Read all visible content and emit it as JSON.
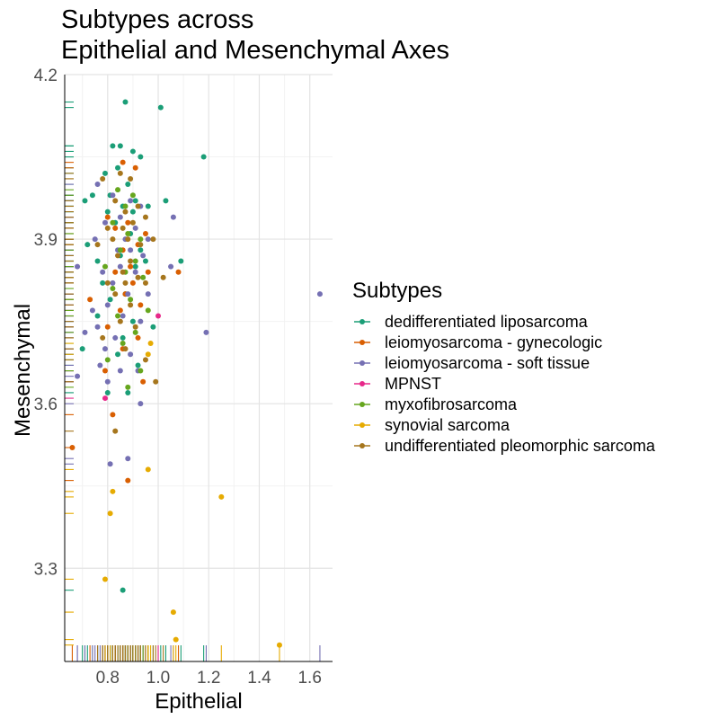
{
  "chart_data": {
    "type": "scatter",
    "title_lines": [
      "Subtypes across",
      "Epithelial and Mesenchymal Axes"
    ],
    "xlabel": "Epithelial",
    "ylabel": "Mesenchymal",
    "xlim": [
      0.63,
      1.69
    ],
    "ylim": [
      3.13,
      4.2
    ],
    "xticks": [
      {
        "value": 0.8,
        "label": "0.8"
      },
      {
        "value": 1.0,
        "label": "1.0"
      },
      {
        "value": 1.2,
        "label": "1.2"
      },
      {
        "value": 1.4,
        "label": "1.4"
      },
      {
        "value": 1.6,
        "label": "1.6"
      }
    ],
    "yticks": [
      {
        "value": 3.3,
        "label": "3.3"
      },
      {
        "value": 3.6,
        "label": "3.6"
      },
      {
        "value": 3.9,
        "label": "3.9"
      },
      {
        "value": 4.2,
        "label": "4.2"
      }
    ],
    "grid": true,
    "rug": true,
    "legend": {
      "title": "Subtypes",
      "position": "right"
    },
    "series": [
      {
        "name": "dedifferentiated liposarcoma",
        "color": "#1b9e77",
        "points": [
          [
            0.87,
            4.15
          ],
          [
            1.01,
            4.14
          ],
          [
            1.18,
            4.05
          ],
          [
            0.82,
            4.07
          ],
          [
            0.85,
            4.07
          ],
          [
            0.9,
            4.06
          ],
          [
            0.93,
            4.05
          ],
          [
            0.84,
            4.03
          ],
          [
            0.79,
            4.02
          ],
          [
            0.88,
            4.0
          ],
          [
            0.74,
            3.98
          ],
          [
            0.81,
            3.98
          ],
          [
            0.91,
            3.97
          ],
          [
            0.86,
            3.96
          ],
          [
            0.9,
            3.95
          ],
          [
            0.96,
            3.96
          ],
          [
            1.03,
            3.97
          ],
          [
            0.71,
            3.97
          ],
          [
            0.8,
            3.95
          ],
          [
            0.83,
            3.93
          ],
          [
            0.89,
            3.91
          ],
          [
            0.93,
            3.88
          ],
          [
            0.72,
            3.89
          ],
          [
            0.85,
            3.87
          ],
          [
            0.76,
            3.86
          ],
          [
            0.95,
            3.86
          ],
          [
            1.09,
            3.86
          ],
          [
            0.91,
            3.85
          ],
          [
            0.78,
            3.82
          ],
          [
            0.87,
            3.8
          ],
          [
            0.81,
            3.79
          ],
          [
            0.76,
            3.76
          ],
          [
            0.9,
            3.75
          ],
          [
            0.98,
            3.74
          ],
          [
            0.86,
            3.72
          ],
          [
            0.7,
            3.7
          ],
          [
            0.84,
            3.69
          ],
          [
            0.92,
            3.67
          ],
          [
            0.8,
            3.62
          ],
          [
            0.88,
            3.62
          ],
          [
            0.86,
            3.26
          ]
        ]
      },
      {
        "name": "leiomyosarcoma - gynecologic",
        "color": "#d95f02",
        "points": [
          [
            0.86,
            4.04
          ],
          [
            0.91,
            4.03
          ],
          [
            0.8,
            3.94
          ],
          [
            0.88,
            3.93
          ],
          [
            0.83,
            3.92
          ],
          [
            0.95,
            3.91
          ],
          [
            0.92,
            3.89
          ],
          [
            0.86,
            3.88
          ],
          [
            0.89,
            3.85
          ],
          [
            0.96,
            3.84
          ],
          [
            1.08,
            3.84
          ],
          [
            0.83,
            3.84
          ],
          [
            0.9,
            3.82
          ],
          [
            0.87,
            3.8
          ],
          [
            0.73,
            3.79
          ],
          [
            0.93,
            3.78
          ],
          [
            0.85,
            3.77
          ],
          [
            0.8,
            3.74
          ],
          [
            0.92,
            3.72
          ],
          [
            0.86,
            3.7
          ],
          [
            0.79,
            3.66
          ],
          [
            0.94,
            3.64
          ],
          [
            0.82,
            3.58
          ],
          [
            0.66,
            3.52
          ],
          [
            0.88,
            3.46
          ]
        ]
      },
      {
        "name": "leiomyosarcoma - soft tissue",
        "color": "#7570b3",
        "points": [
          [
            1.64,
            3.8
          ],
          [
            1.19,
            3.73
          ],
          [
            1.06,
            3.94
          ],
          [
            0.76,
            4.0
          ],
          [
            0.82,
            3.98
          ],
          [
            0.89,
            3.97
          ],
          [
            0.93,
            3.96
          ],
          [
            0.85,
            3.94
          ],
          [
            0.79,
            3.93
          ],
          [
            0.91,
            3.92
          ],
          [
            0.96,
            3.9
          ],
          [
            0.87,
            3.9
          ],
          [
            0.75,
            3.9
          ],
          [
            0.84,
            3.88
          ],
          [
            0.89,
            3.88
          ],
          [
            0.94,
            3.87
          ],
          [
            0.68,
            3.85
          ],
          [
            0.78,
            3.84
          ],
          [
            0.85,
            3.85
          ],
          [
            0.91,
            3.84
          ],
          [
            1.05,
            3.85
          ],
          [
            0.82,
            3.82
          ],
          [
            0.88,
            3.8
          ],
          [
            0.96,
            3.8
          ],
          [
            0.74,
            3.77
          ],
          [
            0.8,
            3.78
          ],
          [
            0.86,
            3.76
          ],
          [
            0.93,
            3.75
          ],
          [
            0.76,
            3.74
          ],
          [
            0.71,
            3.73
          ],
          [
            0.83,
            3.72
          ],
          [
            0.79,
            3.7
          ],
          [
            0.89,
            3.69
          ],
          [
            0.77,
            3.67
          ],
          [
            0.85,
            3.66
          ],
          [
            0.92,
            3.66
          ],
          [
            0.68,
            3.65
          ],
          [
            0.8,
            3.64
          ],
          [
            0.93,
            3.6
          ],
          [
            0.81,
            3.49
          ],
          [
            0.88,
            3.5
          ]
        ]
      },
      {
        "name": "MPNST",
        "color": "#e7298a",
        "points": [
          [
            0.79,
            3.61
          ],
          [
            1.0,
            3.76
          ]
        ]
      },
      {
        "name": "myxofibrosarcoma",
        "color": "#66a61e",
        "points": [
          [
            0.84,
            3.99
          ],
          [
            0.9,
            3.98
          ],
          [
            0.87,
            3.96
          ],
          [
            0.82,
            3.93
          ],
          [
            0.88,
            3.91
          ],
          [
            0.93,
            3.9
          ],
          [
            0.85,
            3.88
          ],
          [
            0.91,
            3.86
          ],
          [
            0.79,
            3.85
          ],
          [
            0.87,
            3.84
          ],
          [
            0.94,
            3.83
          ],
          [
            0.82,
            3.81
          ],
          [
            0.89,
            3.79
          ],
          [
            0.96,
            3.77
          ],
          [
            0.84,
            3.76
          ],
          [
            0.91,
            3.73
          ],
          [
            0.86,
            3.71
          ],
          [
            0.8,
            3.68
          ],
          [
            0.93,
            3.66
          ],
          [
            0.88,
            3.63
          ]
        ]
      },
      {
        "name": "synovial sarcoma",
        "color": "#e6ab02",
        "points": [
          [
            1.25,
            3.43
          ],
          [
            0.82,
            3.44
          ],
          [
            0.81,
            3.4
          ],
          [
            0.97,
            3.71
          ],
          [
            0.96,
            3.69
          ],
          [
            0.96,
            3.48
          ],
          [
            0.79,
            3.28
          ],
          [
            1.06,
            3.22
          ],
          [
            1.07,
            3.17
          ],
          [
            1.48,
            3.16
          ]
        ]
      },
      {
        "name": "undifferentiated pleomorphic sarcoma",
        "color": "#a6761d",
        "points": [
          [
            0.78,
            4.01
          ],
          [
            0.85,
            4.02
          ],
          [
            0.89,
            4.01
          ],
          [
            0.83,
            3.97
          ],
          [
            0.92,
            3.96
          ],
          [
            0.87,
            3.95
          ],
          [
            0.8,
            3.92
          ],
          [
            0.86,
            3.92
          ],
          [
            0.9,
            3.93
          ],
          [
            0.95,
            3.94
          ],
          [
            0.82,
            3.9
          ],
          [
            0.88,
            3.9
          ],
          [
            0.93,
            3.89
          ],
          [
            0.98,
            3.9
          ],
          [
            0.76,
            3.89
          ],
          [
            0.84,
            3.87
          ],
          [
            0.89,
            3.86
          ],
          [
            0.86,
            3.84
          ],
          [
            0.92,
            3.83
          ],
          [
            1.02,
            3.83
          ],
          [
            0.8,
            3.82
          ],
          [
            0.87,
            3.82
          ],
          [
            0.95,
            3.82
          ],
          [
            0.83,
            3.8
          ],
          [
            0.89,
            3.78
          ],
          [
            0.85,
            3.75
          ],
          [
            0.91,
            3.74
          ],
          [
            0.78,
            3.72
          ],
          [
            0.87,
            3.7
          ],
          [
            0.95,
            3.68
          ],
          [
            0.99,
            3.64
          ],
          [
            0.83,
            3.55
          ]
        ]
      }
    ]
  }
}
